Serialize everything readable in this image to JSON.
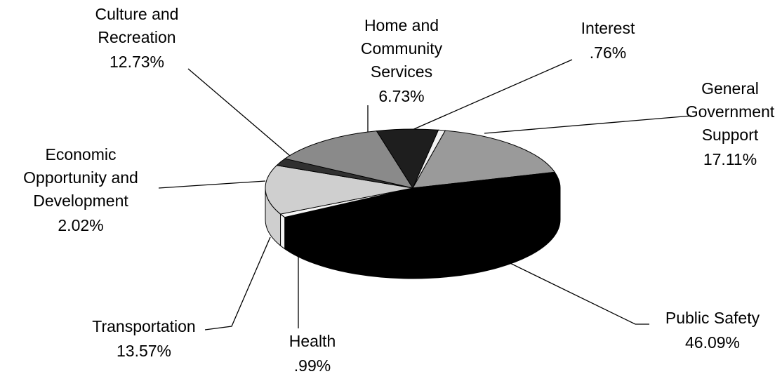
{
  "chart_data": {
    "type": "pie",
    "categories": [
      "Interest",
      "General\nGovernment\nSupport",
      "Public Safety",
      "Health",
      "Transportation",
      "Economic\nOpportunity and\nDevelopment",
      "Culture and\nRecreation",
      "Home and\nCommunity\nServices"
    ],
    "values": [
      0.76,
      17.11,
      46.09,
      0.99,
      13.57,
      2.02,
      12.73,
      6.73
    ],
    "value_labels": [
      ".76%",
      "17.11%",
      "46.09%",
      ".99%",
      "13.57%",
      "2.02%",
      "12.73%",
      "6.73%"
    ],
    "colors": [
      "#f2f2f2",
      "#9a9a9a",
      "#000000",
      "#f5f5f5",
      "#cfcfcf",
      "#303030",
      "#8a8a8a",
      "#1e1e1e"
    ]
  }
}
